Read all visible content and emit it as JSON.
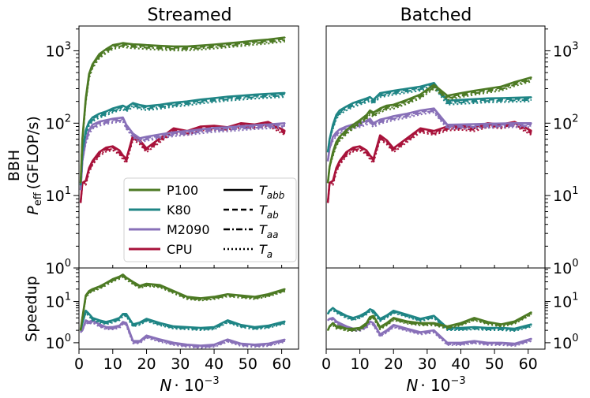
{
  "chart_data": {
    "type": "line",
    "panels": [
      {
        "id": "streamed-top",
        "title": "Streamed",
        "scale": "log",
        "ylim": [
          1,
          2000
        ]
      },
      {
        "id": "batched-top",
        "title": "Batched",
        "scale": "log",
        "ylim": [
          1,
          2000
        ]
      },
      {
        "id": "streamed-bottom",
        "scale": "log",
        "ylim": [
          0.7,
          60
        ]
      },
      {
        "id": "batched-bottom",
        "scale": "log",
        "ylim": [
          0.7,
          60
        ]
      }
    ],
    "ylabel_top_line1": "BBH",
    "ylabel_top_line2": "P",
    "ylabel_top_sub": "eff",
    "ylabel_top_units": "(GFLOP/s)",
    "ylabel_bottom": "Speedup",
    "xlabel_N": "N",
    "xlabel_rest": "· 10",
    "xlabel_exp": "−3",
    "xlim": [
      0,
      65
    ],
    "xticks": [
      0,
      10,
      20,
      30,
      40,
      50,
      60
    ],
    "xtick_labels": [
      "0",
      "10",
      "20",
      "30",
      "40",
      "50",
      "60"
    ],
    "ytick_labels_top": [
      {
        "base": "10",
        "exp": "0"
      },
      {
        "base": "10",
        "exp": "1"
      },
      {
        "base": "10",
        "exp": "2"
      },
      {
        "base": "10",
        "exp": "3"
      }
    ],
    "ytick_labels_bottom": [
      {
        "base": "10",
        "exp": "0"
      },
      {
        "base": "10",
        "exp": "1"
      }
    ],
    "colors": {
      "P100": "#4d7a24",
      "K80": "#1f8585",
      "M2090": "#8870b8",
      "CPU": "#a8123a"
    },
    "legend": {
      "devices": [
        {
          "name": "P100",
          "color": "#4d7a24"
        },
        {
          "name": "K80",
          "color": "#1f8585"
        },
        {
          "name": "M2090",
          "color": "#8870b8"
        },
        {
          "name": "CPU",
          "color": "#a8123a"
        }
      ],
      "kernels": [
        {
          "base": "T",
          "sub": "abb",
          "dash": "solid"
        },
        {
          "base": "T",
          "sub": "ab",
          "dash": "dashed"
        },
        {
          "base": "T",
          "sub": "aa",
          "dash": "dashdot"
        },
        {
          "base": "T",
          "sub": "a",
          "dash": "dotted"
        }
      ]
    },
    "x": [
      0.5,
      1,
      2,
      3,
      4,
      6,
      8,
      10,
      12,
      13,
      14,
      16,
      18,
      20,
      24,
      28,
      32,
      36,
      40,
      44,
      48,
      52,
      56,
      61
    ],
    "streamed": {
      "P100": [
        15,
        60,
        220,
        480,
        650,
        900,
        1050,
        1200,
        1250,
        1280,
        1260,
        1230,
        1220,
        1200,
        1170,
        1150,
        1150,
        1180,
        1220,
        1270,
        1320,
        1380,
        1430,
        1530
      ],
      "K80": [
        14,
        40,
        80,
        105,
        120,
        135,
        145,
        160,
        170,
        175,
        165,
        190,
        178,
        172,
        180,
        192,
        200,
        212,
        222,
        232,
        240,
        248,
        255,
        262
      ],
      "M2090": [
        12,
        30,
        60,
        80,
        95,
        105,
        110,
        115,
        118,
        120,
        95,
        72,
        62,
        65,
        70,
        75,
        78,
        82,
        86,
        88,
        91,
        94,
        96,
        100
      ],
      "CPU": [
        8,
        15,
        16,
        24,
        30,
        40,
        46,
        48,
        42,
        36,
        32,
        68,
        58,
        45,
        62,
        85,
        78,
        90,
        92,
        88,
        100,
        96,
        104,
        78
      ]
    },
    "batched": {
      "P100": [
        15,
        25,
        40,
        55,
        65,
        80,
        95,
        110,
        130,
        150,
        140,
        160,
        175,
        180,
        210,
        250,
        340,
        240,
        260,
        280,
        300,
        320,
        370,
        430
      ],
      "K80": [
        40,
        60,
        95,
        130,
        150,
        170,
        190,
        205,
        220,
        230,
        210,
        260,
        270,
        280,
        300,
        320,
        360,
        205,
        210,
        215,
        220,
        222,
        225,
        228
      ],
      "M2090": [
        30,
        45,
        65,
        75,
        82,
        90,
        96,
        100,
        108,
        115,
        100,
        112,
        118,
        125,
        135,
        150,
        160,
        95,
        96,
        97,
        98,
        99,
        100,
        100
      ],
      "CPU": [
        8,
        15,
        16,
        24,
        30,
        40,
        46,
        48,
        42,
        36,
        32,
        68,
        58,
        45,
        62,
        85,
        78,
        90,
        92,
        88,
        100,
        96,
        104,
        78
      ]
    },
    "speedup_streamed": {
      "P100": [
        2,
        4,
        14,
        18,
        20,
        23,
        28,
        35,
        40,
        45,
        38,
        30,
        24,
        27,
        25,
        18,
        13,
        12,
        13,
        15,
        14,
        13,
        15,
        20
      ],
      "K80": [
        2,
        3,
        6,
        5,
        4,
        3.5,
        3.2,
        3.5,
        4,
        5,
        5,
        2.8,
        3.1,
        3.8,
        3,
        2.5,
        2.4,
        2.3,
        2.4,
        3.5,
        2.7,
        2.4,
        2.6,
        3.3
      ],
      "M2090": [
        1.8,
        2,
        3.5,
        3.2,
        3.5,
        2.8,
        2.4,
        2.4,
        2.6,
        3.2,
        3,
        1.1,
        1.1,
        1.5,
        1.2,
        1,
        0.9,
        0.85,
        0.9,
        1.2,
        0.95,
        0.9,
        0.95,
        1.2
      ]
    },
    "speedup_batched": {
      "P100": [
        2,
        2.5,
        3,
        2.5,
        2.5,
        2.2,
        2.2,
        2.3,
        3,
        4.2,
        4.5,
        2.4,
        3,
        4,
        3.3,
        3,
        3,
        2.5,
        3,
        4,
        3.2,
        2.8,
        3.3,
        5.5
      ],
      "K80": [
        5,
        6,
        7,
        6,
        5.5,
        4.5,
        4,
        4.5,
        5.5,
        6.5,
        6,
        3.8,
        4.6,
        6,
        4.8,
        3.8,
        4.5,
        2.3,
        2.3,
        2.4,
        2.3,
        2.3,
        2.2,
        2.8
      ],
      "M2090": [
        3.5,
        3.8,
        4,
        3.3,
        3,
        2.5,
        2.2,
        2.2,
        2.6,
        3.3,
        3,
        1.6,
        2,
        2.7,
        2.2,
        1.8,
        2,
        1,
        1,
        1.1,
        1,
        1,
        0.95,
        1.25
      ]
    }
  }
}
